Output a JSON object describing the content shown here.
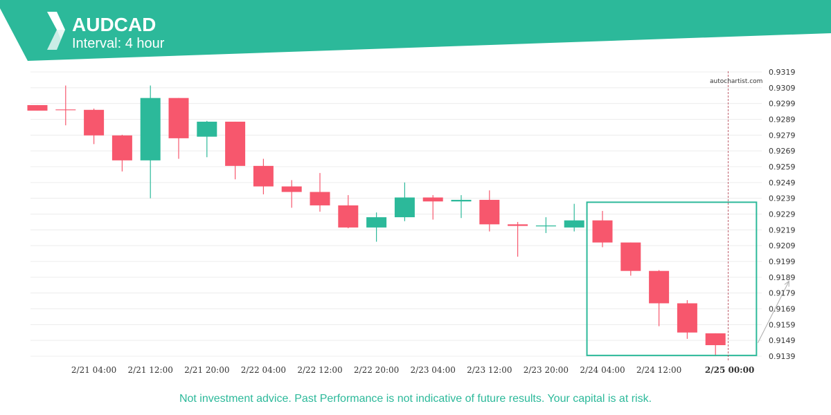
{
  "header": {
    "symbol": "AUDCAD",
    "interval": "Interval: 4 hour",
    "logo_icon": "autochartist-logo-icon",
    "band_color": "#2cb99a"
  },
  "watermark": "autochartist.com",
  "disclaimer": "Not investment advice. Past Performance is not indicative of future results. Your capital is at risk.",
  "colors": {
    "bull": "#2cb99a",
    "bear": "#f7576d",
    "pattern_box": "#2cb99a",
    "grid": "#ececec",
    "arrow": "#aaaaaa",
    "now_line": "#b03a4a"
  },
  "chart_data": {
    "type": "candlestick",
    "title": "",
    "ylim": [
      0.9139,
      0.9319
    ],
    "y_ticks": [
      "0.9319",
      "0.9309",
      "0.9299",
      "0.9289",
      "0.9279",
      "0.9269",
      "0.9259",
      "0.9249",
      "0.9239",
      "0.9229",
      "0.9219",
      "0.9209",
      "0.9199",
      "0.9189",
      "0.9179",
      "0.9169",
      "0.9159",
      "0.9149",
      "0.9139"
    ],
    "x_ticks": [
      {
        "label": "2/21 04:00",
        "candle": 2,
        "bold": false
      },
      {
        "label": "2/21 12:00",
        "candle": 4,
        "bold": false
      },
      {
        "label": "2/21 20:00",
        "candle": 6,
        "bold": false
      },
      {
        "label": "2/22 04:00",
        "candle": 8,
        "bold": false
      },
      {
        "label": "2/22 12:00",
        "candle": 10,
        "bold": false
      },
      {
        "label": "2/22 20:00",
        "candle": 12,
        "bold": false
      },
      {
        "label": "2/23 04:00",
        "candle": 14,
        "bold": false
      },
      {
        "label": "2/23 12:00",
        "candle": 16,
        "bold": false
      },
      {
        "label": "2/23 20:00",
        "candle": 18,
        "bold": false
      },
      {
        "label": "2/24 04:00",
        "candle": 20,
        "bold": false
      },
      {
        "label": "2/24 12:00",
        "candle": 22,
        "bold": false
      },
      {
        "label": "2/25 00:00",
        "candle": 24.5,
        "bold": true
      }
    ],
    "candles": [
      {
        "o": 0.9298,
        "h": 0.9298,
        "l": 0.92945,
        "c": 0.92945
      },
      {
        "o": 0.9295,
        "h": 0.93104,
        "l": 0.92852,
        "c": 0.9295
      },
      {
        "o": 0.9295,
        "h": 0.92958,
        "l": 0.92733,
        "c": 0.92788
      },
      {
        "o": 0.92788,
        "h": 0.92792,
        "l": 0.9256,
        "c": 0.9263
      },
      {
        "o": 0.9263,
        "h": 0.93104,
        "l": 0.9239,
        "c": 0.93025
      },
      {
        "o": 0.93025,
        "h": 0.93025,
        "l": 0.9264,
        "c": 0.9277
      },
      {
        "o": 0.9278,
        "h": 0.9288,
        "l": 0.9265,
        "c": 0.92875
      },
      {
        "o": 0.92875,
        "h": 0.92875,
        "l": 0.9251,
        "c": 0.92595
      },
      {
        "o": 0.92595,
        "h": 0.9264,
        "l": 0.92415,
        "c": 0.92465
      },
      {
        "o": 0.92465,
        "h": 0.92505,
        "l": 0.9233,
        "c": 0.9243
      },
      {
        "o": 0.9243,
        "h": 0.9255,
        "l": 0.92305,
        "c": 0.92345
      },
      {
        "o": 0.92345,
        "h": 0.9241,
        "l": 0.922,
        "c": 0.92205
      },
      {
        "o": 0.92205,
        "h": 0.923,
        "l": 0.92115,
        "c": 0.9227
      },
      {
        "o": 0.9227,
        "h": 0.9249,
        "l": 0.92245,
        "c": 0.92395
      },
      {
        "o": 0.92395,
        "h": 0.9241,
        "l": 0.92255,
        "c": 0.9237
      },
      {
        "o": 0.9237,
        "h": 0.9241,
        "l": 0.92265,
        "c": 0.9238
      },
      {
        "o": 0.9238,
        "h": 0.9244,
        "l": 0.9218,
        "c": 0.92225
      },
      {
        "o": 0.92225,
        "h": 0.9224,
        "l": 0.9202,
        "c": 0.92215
      },
      {
        "o": 0.9221,
        "h": 0.9227,
        "l": 0.9217,
        "c": 0.92215
      },
      {
        "o": 0.92205,
        "h": 0.92355,
        "l": 0.9218,
        "c": 0.9225
      },
      {
        "o": 0.9225,
        "h": 0.9231,
        "l": 0.9208,
        "c": 0.9211
      },
      {
        "o": 0.9211,
        "h": 0.9211,
        "l": 0.919,
        "c": 0.9193
      },
      {
        "o": 0.9193,
        "h": 0.91935,
        "l": 0.9158,
        "c": 0.91725
      },
      {
        "o": 0.91725,
        "h": 0.91745,
        "l": 0.915,
        "c": 0.9154
      },
      {
        "o": 0.91535,
        "h": 0.91535,
        "l": 0.9139,
        "c": 0.9146
      }
    ],
    "pattern_box": {
      "start_candle": 19.45,
      "end_candle": 25.45,
      "top": 0.92365,
      "bottom": 0.91395
    },
    "now_line_candle": 24.45,
    "forecast_arrow": {
      "from_candle": 25.5,
      "from_price": 0.91475,
      "to_candle": 26.6,
      "to_price": 0.91865
    },
    "grid": true,
    "legend": "none"
  }
}
